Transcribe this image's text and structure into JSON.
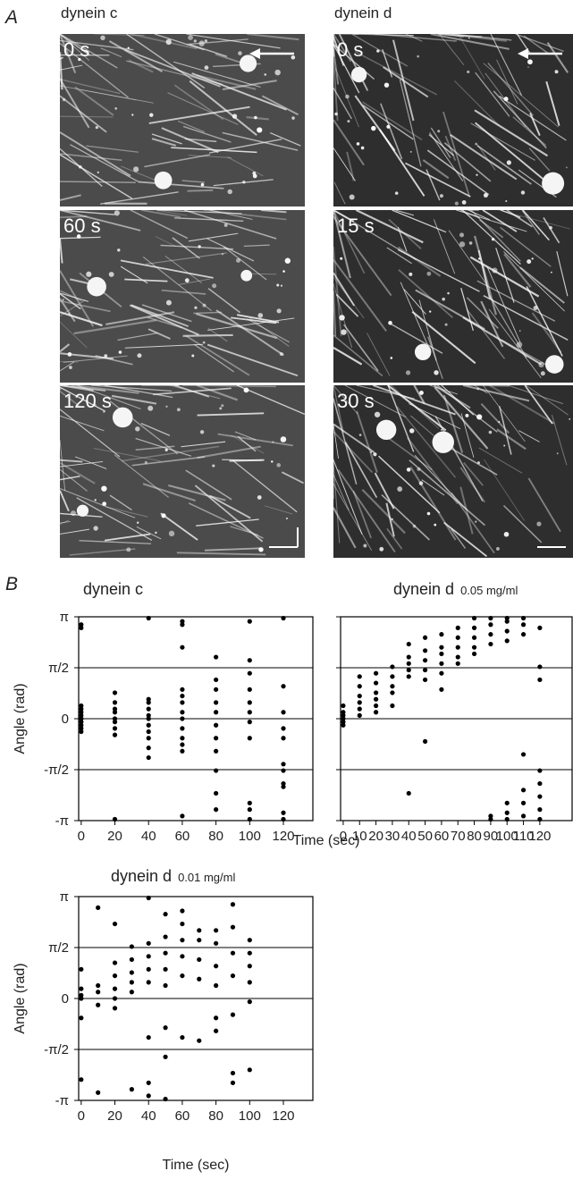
{
  "panel_labels": [
    "A",
    "B"
  ],
  "micrographs": {
    "columns": [
      {
        "label": "dynein c",
        "times": [
          "0 s",
          "60 s",
          "120 s"
        ]
      },
      {
        "label": "dynein d",
        "times": [
          "0 s",
          "15 s",
          "30 s"
        ]
      }
    ]
  },
  "chart_data": [
    {
      "type": "scatter",
      "title": "dynein c",
      "ylabel": "Angle (rad)",
      "color": "#000000",
      "xlim": [
        -1.5,
        137.5
      ],
      "xticks": [
        0,
        20,
        40,
        60,
        80,
        100,
        120
      ],
      "ylim": [
        -3.14159,
        3.14159
      ],
      "yticks": [
        {
          "value": 3.14159,
          "label": "π"
        },
        {
          "value": 1.5708,
          "label": "π/2"
        },
        0,
        {
          "value": -1.5708,
          "label": "-π/2"
        },
        {
          "value": -3.14159,
          "label": "-π"
        }
      ],
      "grid": true,
      "x": [
        0,
        0,
        0,
        0,
        0,
        0,
        0,
        0,
        0,
        0,
        0,
        0,
        20,
        20,
        20,
        20,
        20,
        20,
        20,
        20,
        20,
        40,
        40,
        40,
        40,
        40,
        40,
        40,
        40,
        40,
        40,
        40,
        60,
        60,
        60,
        60,
        60,
        60,
        60,
        60,
        60,
        60,
        60,
        60,
        60,
        80,
        80,
        80,
        80,
        80,
        80,
        80,
        80,
        80,
        80,
        80,
        100,
        100,
        100,
        100,
        100,
        100,
        100,
        100,
        100,
        100,
        100,
        120,
        120,
        120,
        120,
        120,
        120,
        120,
        120,
        120,
        120,
        120
      ],
      "values": [
        2.8,
        2.9,
        0.4,
        0.3,
        0.2,
        0.1,
        0,
        0,
        -0.1,
        -0.2,
        -0.3,
        -0.4,
        0.8,
        0.5,
        0.3,
        0.2,
        0,
        -0.1,
        -0.3,
        -0.5,
        -3.1,
        3.1,
        0.6,
        0.5,
        0.3,
        0.1,
        0,
        -0.2,
        -0.4,
        -0.6,
        -0.9,
        -1.2,
        3.0,
        2.9,
        2.2,
        0.9,
        0.7,
        0.5,
        0.2,
        0,
        -0.3,
        -0.6,
        -0.8,
        -1,
        -3.0,
        1.9,
        1.2,
        0.9,
        0.5,
        0.2,
        -0.2,
        -0.6,
        -1,
        -1.6,
        -2.3,
        -2.8,
        3.0,
        1.8,
        1.4,
        0.9,
        0.5,
        0.2,
        -0.1,
        -0.6,
        -2.6,
        -2.8,
        -3.1,
        3.1,
        1.0,
        0.2,
        -0.3,
        -0.6,
        -1.4,
        -1.6,
        -2.0,
        -2.1,
        -2.9,
        -3.1
      ]
    },
    {
      "type": "scatter",
      "title": "dynein d",
      "concentration": "0.05 mg/ml",
      "xlabel": "Time (sec)",
      "color": "#000000",
      "xlim": [
        -1.6,
        139.7
      ],
      "xticks": [
        0,
        10,
        20,
        30,
        40,
        50,
        60,
        70,
        80,
        90,
        100,
        110,
        120
      ],
      "ylim": [
        -3.14159,
        3.14159
      ],
      "yticks": [
        3.14159,
        1.5708,
        0,
        -1.5708,
        -3.14159
      ],
      "ytick_labels": false,
      "grid": true,
      "x": [
        0,
        0,
        0,
        0,
        0,
        0,
        10,
        10,
        10,
        10,
        10,
        10,
        20,
        20,
        20,
        20,
        20,
        20,
        30,
        30,
        30,
        30,
        30,
        40,
        40,
        40,
        40,
        40,
        40,
        50,
        50,
        50,
        50,
        50,
        50,
        60,
        60,
        60,
        60,
        60,
        60,
        70,
        70,
        70,
        70,
        70,
        80,
        80,
        80,
        80,
        80,
        90,
        90,
        90,
        90,
        90,
        90,
        100,
        100,
        100,
        100,
        100,
        100,
        100,
        110,
        110,
        110,
        110,
        110,
        110,
        110,
        120,
        120,
        120,
        120,
        120,
        120,
        120,
        120
      ],
      "values": [
        0.4,
        0.2,
        0.1,
        0,
        -0.1,
        -0.2,
        1.3,
        1.0,
        0.7,
        0.5,
        0.3,
        0.1,
        1.4,
        1.1,
        0.8,
        0.6,
        0.4,
        0.2,
        1.6,
        1.3,
        1.0,
        0.8,
        0.4,
        2.3,
        1.9,
        1.7,
        1.5,
        1.3,
        -2.3,
        2.5,
        2.1,
        1.8,
        1.5,
        1.2,
        -0.7,
        2.6,
        2.2,
        2.0,
        1.7,
        1.4,
        0.9,
        2.8,
        2.5,
        2.2,
        1.9,
        1.7,
        3.1,
        2.8,
        2.5,
        2.2,
        2.0,
        3.1,
        2.9,
        2.6,
        2.3,
        -3.0,
        -3.1,
        3.1,
        3.0,
        2.7,
        2.4,
        -2.6,
        -2.9,
        -3.1,
        3.1,
        2.9,
        2.6,
        -1.1,
        -2.2,
        -2.6,
        -3.0,
        2.8,
        1.6,
        1.2,
        -1.6,
        -2.0,
        -2.4,
        -2.8,
        -3.1
      ]
    },
    {
      "type": "scatter",
      "title": "dynein d",
      "concentration": "0.01 mg/ml",
      "xlabel": "Time (sec)",
      "ylabel": "Angle (rad)",
      "color": "#000000",
      "xlim": [
        -1.5,
        137.5
      ],
      "xticks": [
        0,
        20,
        40,
        60,
        80,
        100,
        120
      ],
      "ylim": [
        -3.14159,
        3.14159
      ],
      "yticks": [
        {
          "value": 3.14159,
          "label": "π"
        },
        {
          "value": 1.5708,
          "label": "π/2"
        },
        0,
        {
          "value": -1.5708,
          "label": "-π/2"
        },
        {
          "value": -3.14159,
          "label": "-π"
        }
      ],
      "grid": true,
      "x": [
        0,
        0,
        0,
        0,
        0,
        0,
        10,
        10,
        10,
        10,
        10,
        20,
        20,
        20,
        20,
        20,
        20,
        30,
        30,
        30,
        30,
        30,
        30,
        40,
        40,
        40,
        40,
        40,
        40,
        40,
        40,
        50,
        50,
        50,
        50,
        50,
        50,
        50,
        50,
        60,
        60,
        60,
        60,
        60,
        60,
        70,
        70,
        70,
        70,
        70,
        80,
        80,
        80,
        80,
        80,
        80,
        90,
        90,
        90,
        90,
        90,
        90,
        90,
        100,
        100,
        100,
        100,
        100,
        100
      ],
      "values": [
        0.9,
        0.3,
        0.1,
        0,
        -0.6,
        -2.5,
        2.8,
        0.4,
        0.2,
        -0.2,
        -2.9,
        2.3,
        1.1,
        0.7,
        0.3,
        0,
        -0.3,
        1.6,
        1.2,
        0.8,
        0.5,
        0.2,
        -2.8,
        3.1,
        1.7,
        1.3,
        0.9,
        0.5,
        -1.2,
        -2.6,
        -3.0,
        2.6,
        1.9,
        1.4,
        0.9,
        0.4,
        -0.9,
        -1.8,
        -3.1,
        2.7,
        2.3,
        1.8,
        1.3,
        0.7,
        -1.2,
        2.1,
        1.8,
        1.2,
        0.6,
        -1.3,
        2.1,
        1.7,
        1.0,
        0.4,
        -0.6,
        -1.0,
        2.9,
        2.2,
        1.4,
        0.7,
        -0.5,
        -2.3,
        -2.6,
        1.8,
        1.4,
        1.0,
        0.5,
        -0.1,
        -2.2
      ]
    }
  ]
}
